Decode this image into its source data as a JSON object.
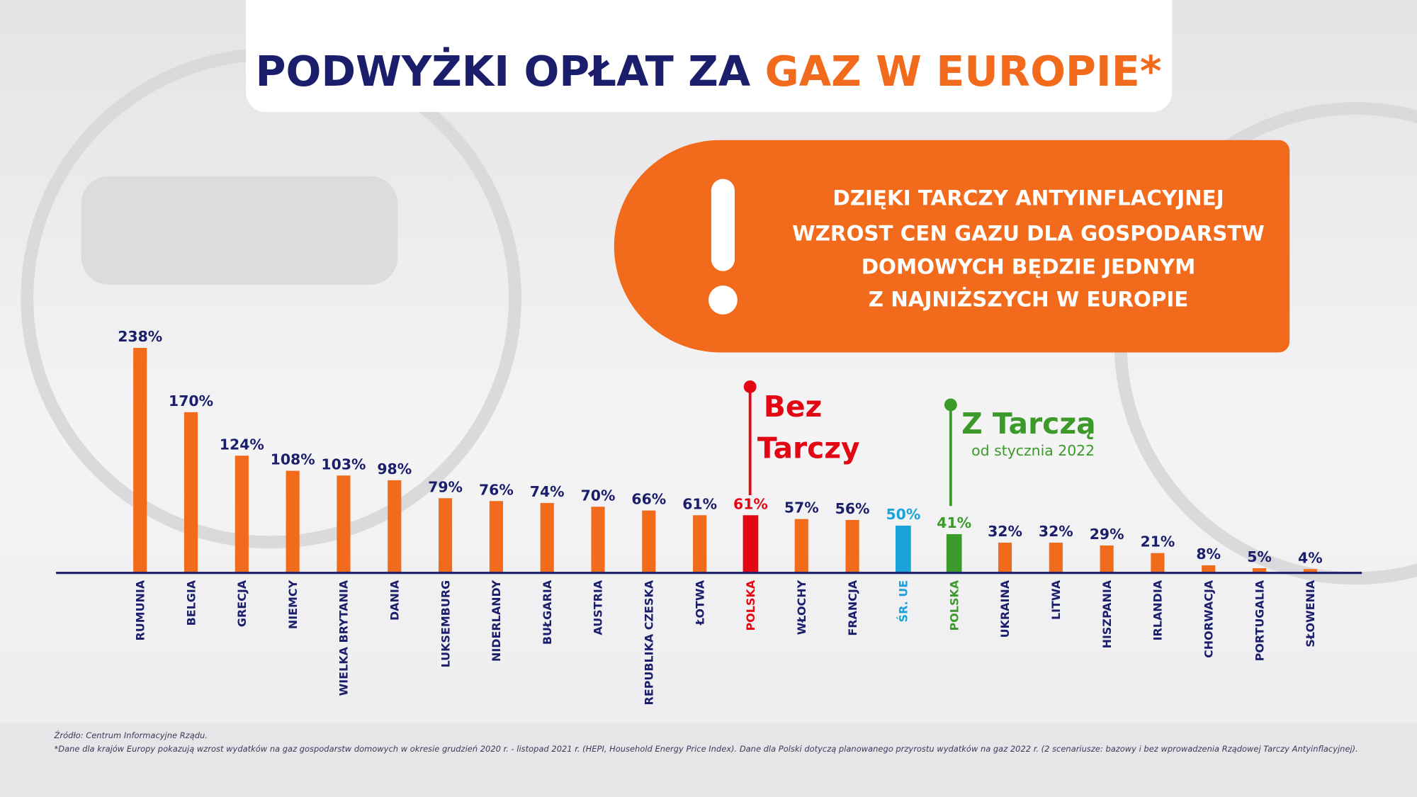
{
  "chart_data": {
    "type": "bar",
    "title": "PODWYŻKI OPŁAT ZA",
    "title_highlight": "GAZ W EUROPIE*",
    "callout": [
      "DZIĘKI TARCZY ANTYINFLACYJNEJ",
      "WZROST CEN GAZU DLA GOSPODARSTW",
      "DOMOWYCH BĘDZIE JEDNYM",
      "Z NAJNIŻSZYCH W EUROPIE"
    ],
    "annotations": [
      {
        "lines": [
          "Bez",
          "Tarczy"
        ]
      },
      {
        "lines": [
          "Z Tarczą",
          "od stycznia 2022"
        ]
      }
    ],
    "categories": [
      "RUMUNIA",
      "BELGIA",
      "GRECJA",
      "NIEMCY",
      "WIELKA BRYTANIA",
      "DANIA",
      "LUKSEMBURG",
      "NIDERLANDY",
      "BUŁGARIA",
      "AUSTRIA",
      "REPUBLIKA CZESKA",
      "ŁOTWA",
      "POLSKA",
      "WŁOCHY",
      "FRANCJA",
      "ŚR. UE",
      "POLSKA",
      "UKRAINA",
      "LITWA",
      "HISZPANIA",
      "IRLANDIA",
      "CHORWACJA",
      "PORTUGALIA",
      "SŁOWENIA"
    ],
    "values": [
      238,
      170,
      124,
      108,
      103,
      98,
      79,
      76,
      74,
      70,
      66,
      61,
      61,
      57,
      56,
      50,
      41,
      32,
      32,
      29,
      21,
      8,
      5,
      4
    ],
    "value_labels": [
      "238%",
      "170%",
      "124%",
      "108%",
      "103%",
      "98%",
      "79%",
      "76%",
      "74%",
      "70%",
      "66%",
      "61%",
      "61%",
      "57%",
      "56%",
      "50%",
      "41%",
      "32%",
      "32%",
      "29%",
      "21%",
      "8%",
      "5%",
      "4%"
    ],
    "colors": [
      "#f26a1b",
      "#f26a1b",
      "#f26a1b",
      "#f26a1b",
      "#f26a1b",
      "#f26a1b",
      "#f26a1b",
      "#f26a1b",
      "#f26a1b",
      "#f26a1b",
      "#f26a1b",
      "#f26a1b",
      "#e30613",
      "#f26a1b",
      "#f26a1b",
      "#1aa3d9",
      "#3c9a2b",
      "#f26a1b",
      "#f26a1b",
      "#f26a1b",
      "#f26a1b",
      "#f26a1b",
      "#f26a1b",
      "#f26a1b"
    ],
    "source": "Źródło: Centrum Informacyjne Rządu.",
    "footnote": "*Dane dla krajów Europy pokazują wzrost wydatków na gaz gospodarstw domowych w okresie grudzień 2020 r. - listopad 2021 r. (HEPI, Household Energy Price Index). Dane dla Polski dotyczą planowanego przyrostu wydatków na gaz 2022 r. (2 scenariusze: bazowy i bez wprowadzenia Rządowej Tarczy Antyinflacyjnej)."
  }
}
